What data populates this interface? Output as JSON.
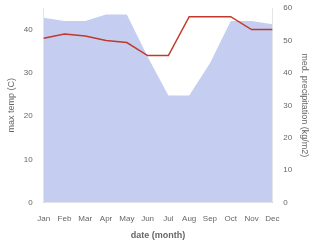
{
  "chart_data": {
    "type": "line",
    "categories": [
      "Jan",
      "Feb",
      "Mar",
      "Apr",
      "May",
      "Jun",
      "Jul",
      "Aug",
      "Sep",
      "Oct",
      "Nov",
      "Dec"
    ],
    "xlabel": "date (month)",
    "ylabel": "max temp (C)",
    "y2label": "med. precipitation (kg/m2)",
    "ylim": [
      0,
      45
    ],
    "yticks": [
      0,
      10,
      20,
      30,
      40
    ],
    "y2lim": [
      0,
      60
    ],
    "y2ticks": [
      0,
      10,
      20,
      30,
      40,
      50,
      60
    ],
    "grid": false,
    "series": [
      {
        "type": "area",
        "axis": "y2",
        "color": "#c5cdf0",
        "values": [
          57,
          56,
          56,
          58,
          58,
          45,
          33,
          33,
          43,
          56,
          56,
          55
        ]
      },
      {
        "type": "line",
        "color": "#c0392b",
        "values": [
          38,
          39,
          38.5,
          37.5,
          37,
          34,
          34,
          43,
          43,
          43,
          40,
          40
        ]
      }
    ]
  }
}
